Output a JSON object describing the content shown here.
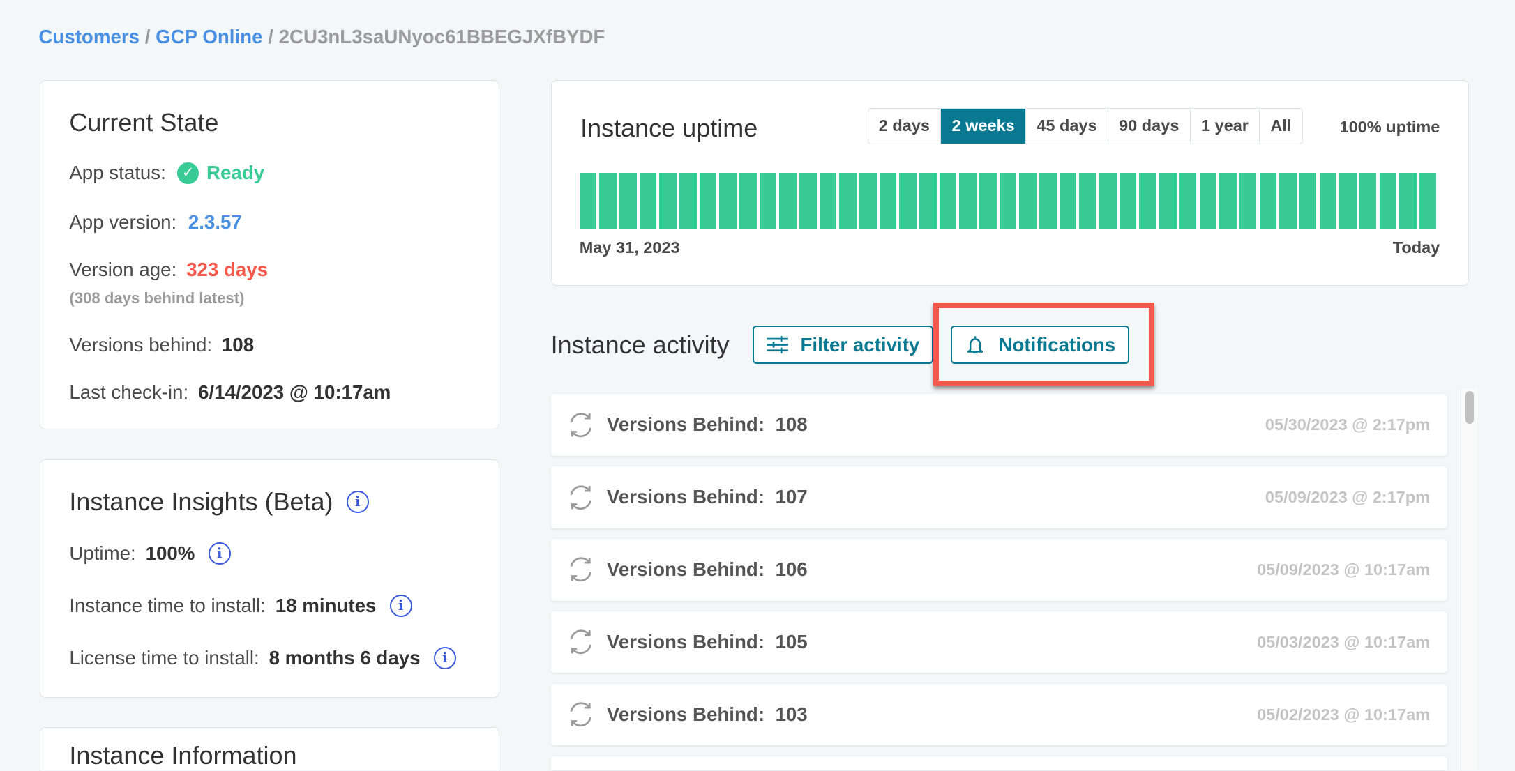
{
  "breadcrumb": {
    "customers": "Customers",
    "separator": "/",
    "customer": "GCP Online",
    "instance": "2CU3nL3saUNyoc61BBEGJXfBYDF"
  },
  "current_state": {
    "title": "Current State",
    "app_status_label": "App status:",
    "app_status": "Ready",
    "app_version_label": "App version:",
    "app_version": "2.3.57",
    "version_age_label": "Version age:",
    "version_age": "323 days",
    "version_age_note": "(308 days behind latest)",
    "versions_behind_label": "Versions behind:",
    "versions_behind": "108",
    "last_checkin_label": "Last check-in:",
    "last_checkin": "6/14/2023 @ 10:17am"
  },
  "insights": {
    "title": "Instance Insights (Beta)",
    "uptime_label": "Uptime:",
    "uptime": "100%",
    "install_label": "Instance time to install:",
    "install": "18 minutes",
    "license_label": "License time to install:",
    "license": "8 months 6 days"
  },
  "instance_information": {
    "title": "Instance Information"
  },
  "uptime": {
    "title": "Instance uptime",
    "ranges": [
      "2 days",
      "2 weeks",
      "45 days",
      "90 days",
      "1 year",
      "All"
    ],
    "selected": "2 weeks",
    "summary": "100% uptime",
    "start_label": "May 31, 2023",
    "end_label": "Today",
    "bar_count": 43,
    "bar_color": "#38cb96"
  },
  "activity": {
    "title": "Instance activity",
    "filter_label": "Filter activity",
    "notifications_label": "Notifications",
    "highlight_color": "#f5574a",
    "items": [
      {
        "label": "Versions Behind:",
        "value": "108",
        "time": "05/30/2023 @ 2:17pm"
      },
      {
        "label": "Versions Behind:",
        "value": "107",
        "time": "05/09/2023 @ 2:17pm"
      },
      {
        "label": "Versions Behind:",
        "value": "106",
        "time": "05/09/2023 @ 10:17am"
      },
      {
        "label": "Versions Behind:",
        "value": "105",
        "time": "05/03/2023 @ 10:17am"
      },
      {
        "label": "Versions Behind:",
        "value": "103",
        "time": "05/02/2023 @ 10:17am"
      }
    ]
  }
}
